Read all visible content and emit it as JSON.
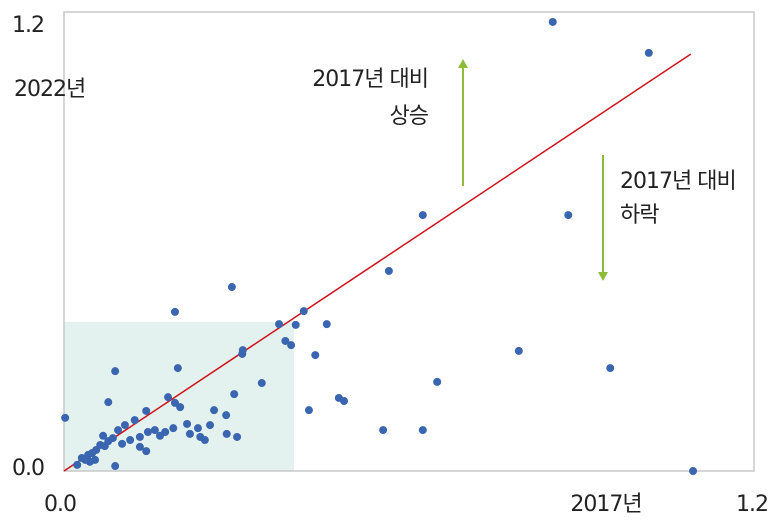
{
  "chart_data": {
    "type": "scatter",
    "x_label": "2017년",
    "y_label": "2022년",
    "xlim": [
      0,
      1.2
    ],
    "ylim": [
      0,
      1.2
    ],
    "xticks": [
      {
        "value": 0,
        "label": "0.0"
      },
      1.2
    ],
    "yticks": [
      {
        "value": 0,
        "label": "0.0"
      },
      1.2
    ],
    "color": "#3a65b0",
    "line_color": "#d0101a",
    "region_color": "#e3f2ee",
    "highlight_region": {
      "x": [
        0,
        0.4
      ],
      "y": [
        0,
        0.39
      ]
    },
    "diagonal": {
      "x": [
        0,
        1.09
      ],
      "y": [
        0,
        1.09
      ]
    },
    "annotations": [
      {
        "lines": [
          "2017년 대비",
          "상승"
        ]
      },
      {
        "lines": [
          "2017년 대비",
          "하락"
        ]
      }
    ],
    "x": [
      0.85,
      1.017,
      0.624,
      0.877,
      0.565,
      0.292,
      0.193,
      0.417,
      0.374,
      0.403,
      0.457,
      0.385,
      0.395,
      0.311,
      0.31,
      0.437,
      0.791,
      0.95,
      0.089,
      0.198,
      0.344,
      0.649,
      0.296,
      0.181,
      0.478,
      0.487,
      0.426,
      0.077,
      0.143,
      0.193,
      0.202,
      0.261,
      0.282,
      0.002,
      0.555,
      0.624,
      1.094,
      0.301,
      0.283,
      0.245,
      0.237,
      0.219,
      0.214,
      0.19,
      0.176,
      0.167,
      0.146,
      0.132,
      0.123,
      0.106,
      0.094,
      0.085,
      0.077,
      0.068,
      0.063,
      0.056,
      0.049,
      0.042,
      0.037,
      0.031,
      0.054,
      0.071,
      0.089,
      0.143,
      0.101,
      0.132,
      0.023,
      0.045,
      0.115,
      0.158,
      0.254,
      0.233
    ],
    "values": [
      1.174,
      1.093,
      0.669,
      0.669,
      0.523,
      0.481,
      0.416,
      0.418,
      0.384,
      0.382,
      0.384,
      0.34,
      0.329,
      0.316,
      0.306,
      0.303,
      0.314,
      0.269,
      0.261,
      0.269,
      0.23,
      0.233,
      0.201,
      0.193,
      0.191,
      0.183,
      0.159,
      0.18,
      0.157,
      0.178,
      0.167,
      0.159,
      0.146,
      0.139,
      0.107,
      0.107,
      0.0,
      0.089,
      0.097,
      0.081,
      0.089,
      0.097,
      0.123,
      0.112,
      0.102,
      0.092,
      0.102,
      0.089,
      0.133,
      0.12,
      0.107,
      0.086,
      0.078,
      0.092,
      0.068,
      0.055,
      0.047,
      0.042,
      0.029,
      0.034,
      0.029,
      0.065,
      0.013,
      0.052,
      0.071,
      0.063,
      0.016,
      0.024,
      0.081,
      0.107,
      0.12,
      0.112
    ]
  }
}
